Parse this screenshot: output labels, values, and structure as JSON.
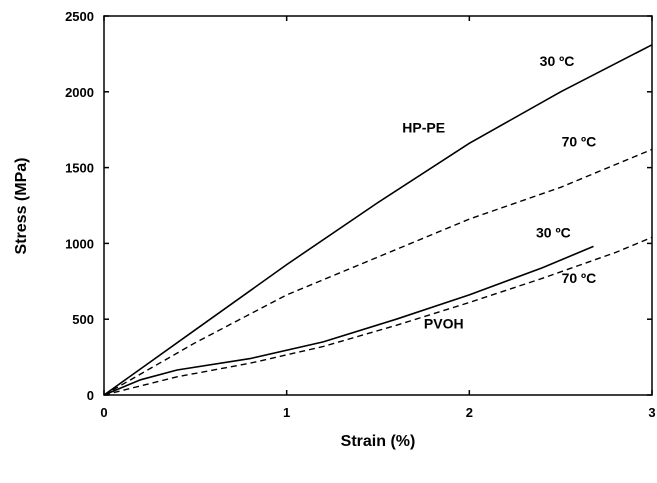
{
  "chart_data": {
    "type": "line",
    "title": "",
    "xlabel": "Strain (%)",
    "ylabel": "Stress (MPa)",
    "xlim": [
      0,
      3
    ],
    "ylim": [
      0,
      2500
    ],
    "xticks": [
      0,
      1,
      2,
      3
    ],
    "yticks": [
      0,
      500,
      1000,
      1500,
      2000,
      2500
    ],
    "grid": false,
    "series": [
      {
        "material": "HP-PE",
        "temperature": "30 ºC",
        "style": "solid",
        "x": [
          0,
          0.5,
          1.0,
          1.5,
          2.0,
          2.5,
          3.0
        ],
        "y": [
          0,
          430,
          860,
          1270,
          1660,
          2000,
          2310
        ]
      },
      {
        "material": "HP-PE",
        "temperature": "70 ºC",
        "style": "dashed",
        "x": [
          0,
          0.5,
          1.0,
          1.5,
          2.0,
          2.5,
          3.0
        ],
        "y": [
          0,
          345,
          660,
          910,
          1160,
          1370,
          1620
        ]
      },
      {
        "material": "PVOH",
        "temperature": "30 ºC",
        "style": "solid",
        "x": [
          0,
          0.2,
          0.4,
          0.8,
          1.2,
          1.6,
          2.0,
          2.4,
          2.68
        ],
        "y": [
          0,
          100,
          165,
          240,
          350,
          500,
          660,
          840,
          980
        ]
      },
      {
        "material": "PVOH",
        "temperature": "70 ºC",
        "style": "dashed",
        "x": [
          0,
          0.4,
          0.8,
          1.2,
          1.6,
          2.0,
          2.4,
          2.8,
          3.0
        ],
        "y": [
          0,
          120,
          210,
          320,
          460,
          610,
          770,
          940,
          1040
        ]
      }
    ],
    "annotations": [
      {
        "text": "HP-PE",
        "x": 1.75,
        "y": 1730,
        "style": "material"
      },
      {
        "text": "30 ºC",
        "x": 2.48,
        "y": 2170,
        "style": "temperature"
      },
      {
        "text": "70 ºC",
        "x": 2.6,
        "y": 1640,
        "style": "temperature"
      },
      {
        "text": "PVOH",
        "x": 1.86,
        "y": 440,
        "style": "material"
      },
      {
        "text": "30 ºC",
        "x": 2.46,
        "y": 1040,
        "style": "temperature"
      },
      {
        "text": "70 ºC",
        "x": 2.6,
        "y": 740,
        "style": "temperature"
      }
    ]
  }
}
